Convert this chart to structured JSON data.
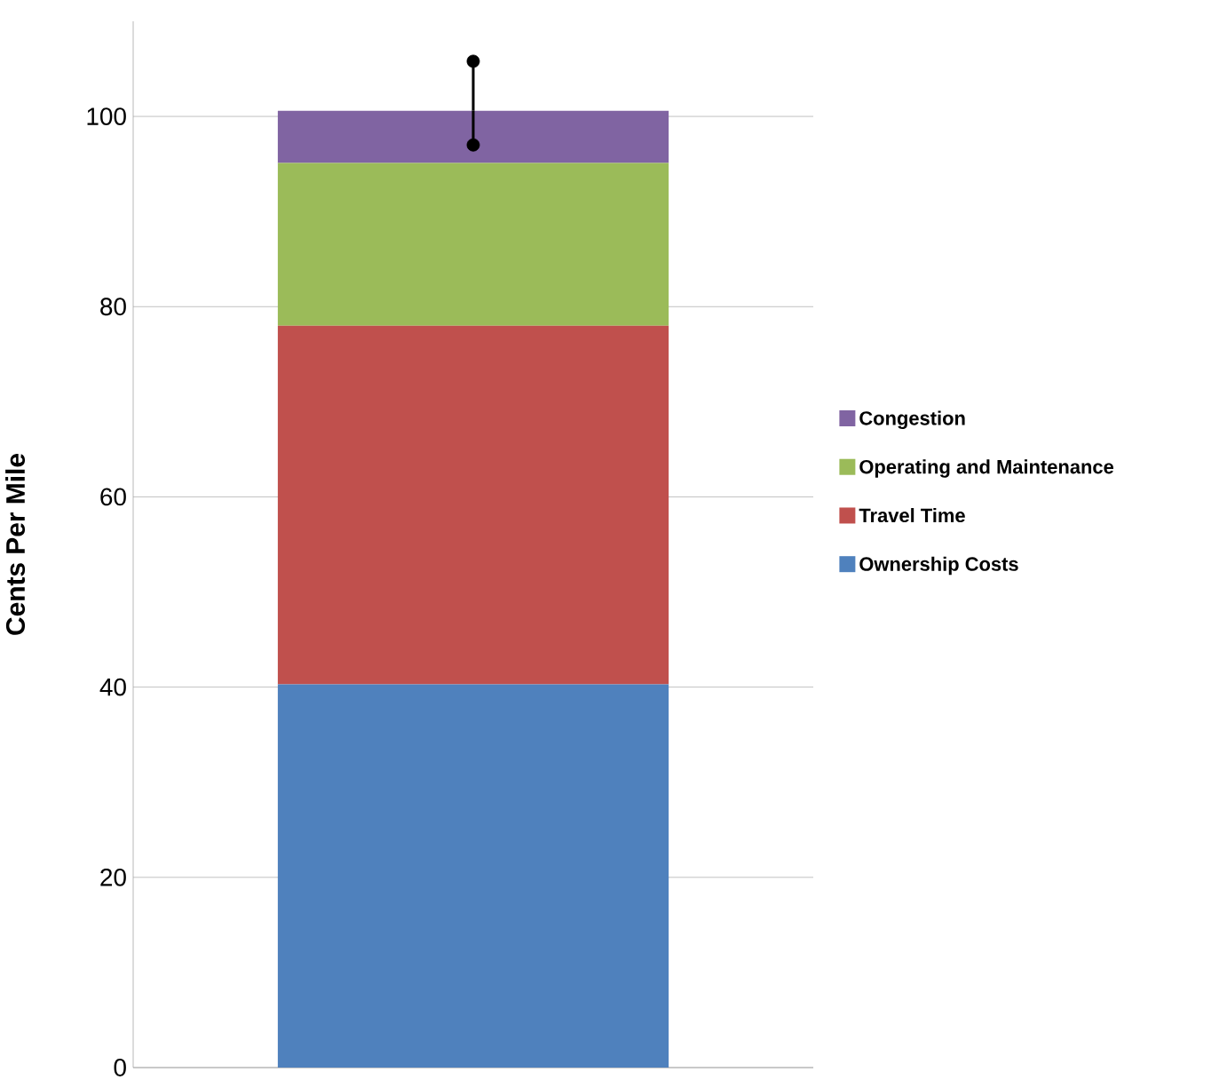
{
  "chart_data": {
    "type": "bar",
    "stacked": true,
    "categories": [
      null
    ],
    "ylabel": "Cents Per Mile",
    "ylim": [
      0,
      110
    ],
    "yticks": [
      0,
      20,
      40,
      60,
      80,
      100
    ],
    "grid": "y",
    "legend": "right",
    "series": [
      {
        "name": "Ownership Costs",
        "color": "#4f81bd",
        "values": [
          40.3
        ]
      },
      {
        "name": "Travel Time",
        "color": "#c0504d",
        "values": [
          37.7
        ]
      },
      {
        "name": "Operating and Maintenance",
        "color": "#9bbb59",
        "values": [
          17.1
        ]
      },
      {
        "name": "Congestion",
        "color": "#8064a2",
        "values": [
          5.5
        ],
        "errors": [
          [
            97.0,
            105.8
          ]
        ]
      },
      {
        "type": "scatter",
        "marker": "circle",
        "color": "#000000",
        "values": [
          97.0
        ]
      },
      {
        "type": "scatter",
        "marker": "circle",
        "color": "#000000",
        "values": [
          105.8
        ]
      }
    ]
  }
}
